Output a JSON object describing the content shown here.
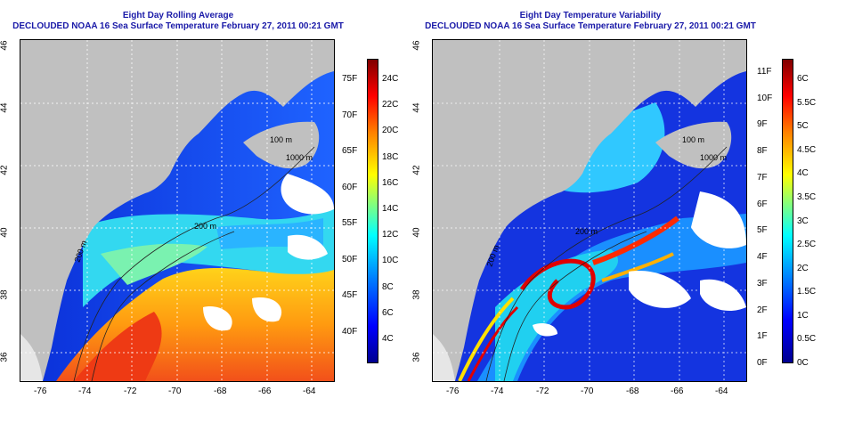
{
  "left_panel": {
    "title_line1": "Eight Day Rolling Average",
    "title_line2": "DECLOUDED NOAA 16 Sea Surface Temperature February 27, 2011 00:21 GMT",
    "contour_labels": [
      "100 m",
      "200 m",
      "200 m",
      "1000 m"
    ],
    "colorbar_fahrenheit": [
      "75F",
      "70F",
      "65F",
      "60F",
      "55F",
      "50F",
      "45F",
      "40F"
    ],
    "colorbar_celsius": [
      "24C",
      "22C",
      "20C",
      "18C",
      "16C",
      "14C",
      "12C",
      "10C",
      "8C",
      "6C",
      "4C"
    ]
  },
  "right_panel": {
    "title_line1": "Eight Day Temperature Variability",
    "title_line2": "DECLOUDED NOAA 16 Sea Surface Temperature February 27, 2011 00:21 GMT",
    "contour_labels": [
      "100 m",
      "200 m",
      "200 m",
      "1000 m"
    ],
    "colorbar_fahrenheit": [
      "11F",
      "10F",
      "9F",
      "8F",
      "7F",
      "6F",
      "5F",
      "4F",
      "3F",
      "2F",
      "1F",
      "0F"
    ],
    "colorbar_celsius": [
      "6C",
      "5.5C",
      "5C",
      "4.5C",
      "4C",
      "3.5C",
      "3C",
      "2.5C",
      "2C",
      "1.5C",
      "1C",
      "0.5C",
      "0C"
    ]
  },
  "axes": {
    "longitude_ticks": [
      "-76",
      "-74",
      "-72",
      "-70",
      "-68",
      "-66",
      "-64"
    ],
    "latitude_ticks": [
      "46",
      "44",
      "42",
      "40",
      "38",
      "36"
    ]
  },
  "colors": {
    "title": "#1a1aa8",
    "land": "#c0c0c0",
    "cloud_mask": "#ffffff"
  }
}
